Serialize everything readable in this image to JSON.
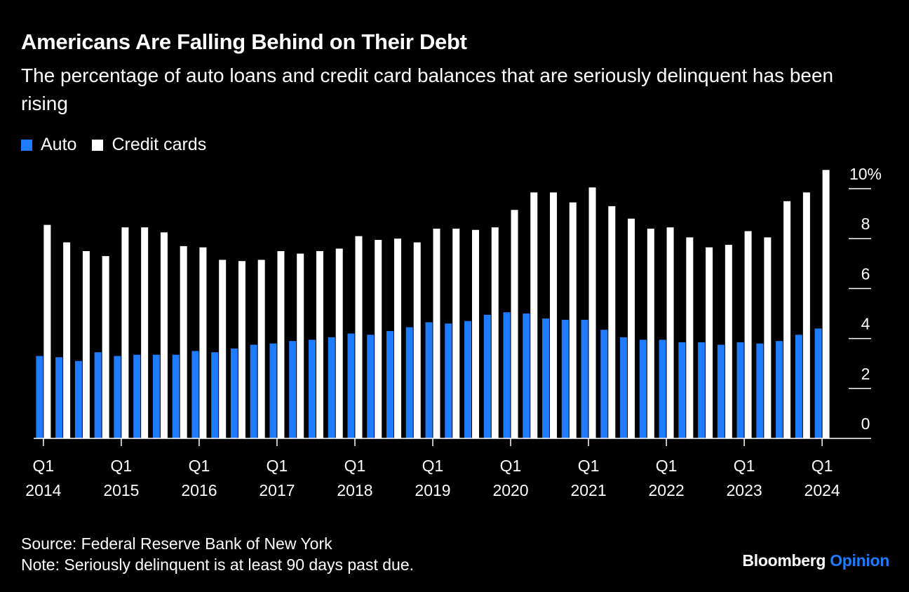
{
  "title": "Americans Are Falling Behind on Their Debt",
  "subtitle": "The percentage of auto loans and credit card balances that are seriously delinquent has been rising",
  "source": "Source: Federal Reserve Bank of New York",
  "note": "Note: Seriously delinquent is at least 90 days past due.",
  "brand": {
    "name": "Bloomberg",
    "suffix": "Opinion"
  },
  "colors": {
    "auto": "#1f7cff",
    "credit": "#ffffff",
    "background": "#000000",
    "brand_accent": "#1f7cff"
  },
  "chart_data": {
    "type": "bar",
    "title": "Americans Are Falling Behind on Their Debt",
    "subtitle": "The percentage of auto loans and credit card balances that are seriously delinquent has been rising",
    "xlabel": "",
    "ylabel": "",
    "ylim": [
      0,
      10
    ],
    "y_ticks": [
      0,
      2,
      4,
      6,
      8,
      10
    ],
    "y_tick_labels": [
      "0",
      "2",
      "4",
      "6",
      "8",
      "10%"
    ],
    "y_axis_position": "right",
    "grid": false,
    "legend_position": "top-left",
    "x_tick_labels": [
      {
        "quarter": "Q1",
        "year": "2014"
      },
      {
        "quarter": "Q1",
        "year": "2015"
      },
      {
        "quarter": "Q1",
        "year": "2016"
      },
      {
        "quarter": "Q1",
        "year": "2017"
      },
      {
        "quarter": "Q1",
        "year": "2018"
      },
      {
        "quarter": "Q1",
        "year": "2019"
      },
      {
        "quarter": "Q1",
        "year": "2020"
      },
      {
        "quarter": "Q1",
        "year": "2021"
      },
      {
        "quarter": "Q1",
        "year": "2022"
      },
      {
        "quarter": "Q1",
        "year": "2023"
      },
      {
        "quarter": "Q1",
        "year": "2024"
      }
    ],
    "categories": [
      "Q1 2014",
      "Q2 2014",
      "Q3 2014",
      "Q4 2014",
      "Q1 2015",
      "Q2 2015",
      "Q3 2015",
      "Q4 2015",
      "Q1 2016",
      "Q2 2016",
      "Q3 2016",
      "Q4 2016",
      "Q1 2017",
      "Q2 2017",
      "Q3 2017",
      "Q4 2017",
      "Q1 2018",
      "Q2 2018",
      "Q3 2018",
      "Q4 2018",
      "Q1 2019",
      "Q2 2019",
      "Q3 2019",
      "Q4 2019",
      "Q1 2020",
      "Q2 2020",
      "Q3 2020",
      "Q4 2020",
      "Q1 2021",
      "Q2 2021",
      "Q3 2021",
      "Q4 2021",
      "Q1 2022",
      "Q2 2022",
      "Q3 2022",
      "Q4 2022",
      "Q1 2023",
      "Q2 2023",
      "Q3 2023",
      "Q4 2023",
      "Q1 2024"
    ],
    "series": [
      {
        "name": "Auto",
        "values": [
          3.3,
          3.25,
          3.1,
          3.45,
          3.3,
          3.35,
          3.35,
          3.35,
          3.5,
          3.45,
          3.6,
          3.75,
          3.8,
          3.9,
          3.95,
          4.05,
          4.2,
          4.15,
          4.3,
          4.45,
          4.65,
          4.6,
          4.7,
          4.95,
          5.05,
          5.0,
          4.8,
          4.75,
          4.75,
          4.35,
          4.05,
          3.95,
          3.95,
          3.85,
          3.85,
          3.75,
          3.85,
          3.8,
          3.9,
          4.15,
          4.4
        ]
      },
      {
        "name": "Credit cards",
        "values": [
          8.55,
          7.85,
          7.5,
          7.3,
          8.45,
          8.45,
          8.25,
          7.7,
          7.65,
          7.15,
          7.1,
          7.15,
          7.5,
          7.4,
          7.5,
          7.6,
          8.1,
          7.95,
          8.0,
          7.85,
          8.4,
          8.4,
          8.35,
          8.45,
          9.15,
          9.85,
          9.85,
          9.45,
          10.05,
          9.3,
          8.8,
          8.4,
          8.45,
          8.05,
          7.65,
          7.75,
          8.3,
          8.05,
          9.5,
          9.85,
          10.75
        ]
      }
    ]
  }
}
